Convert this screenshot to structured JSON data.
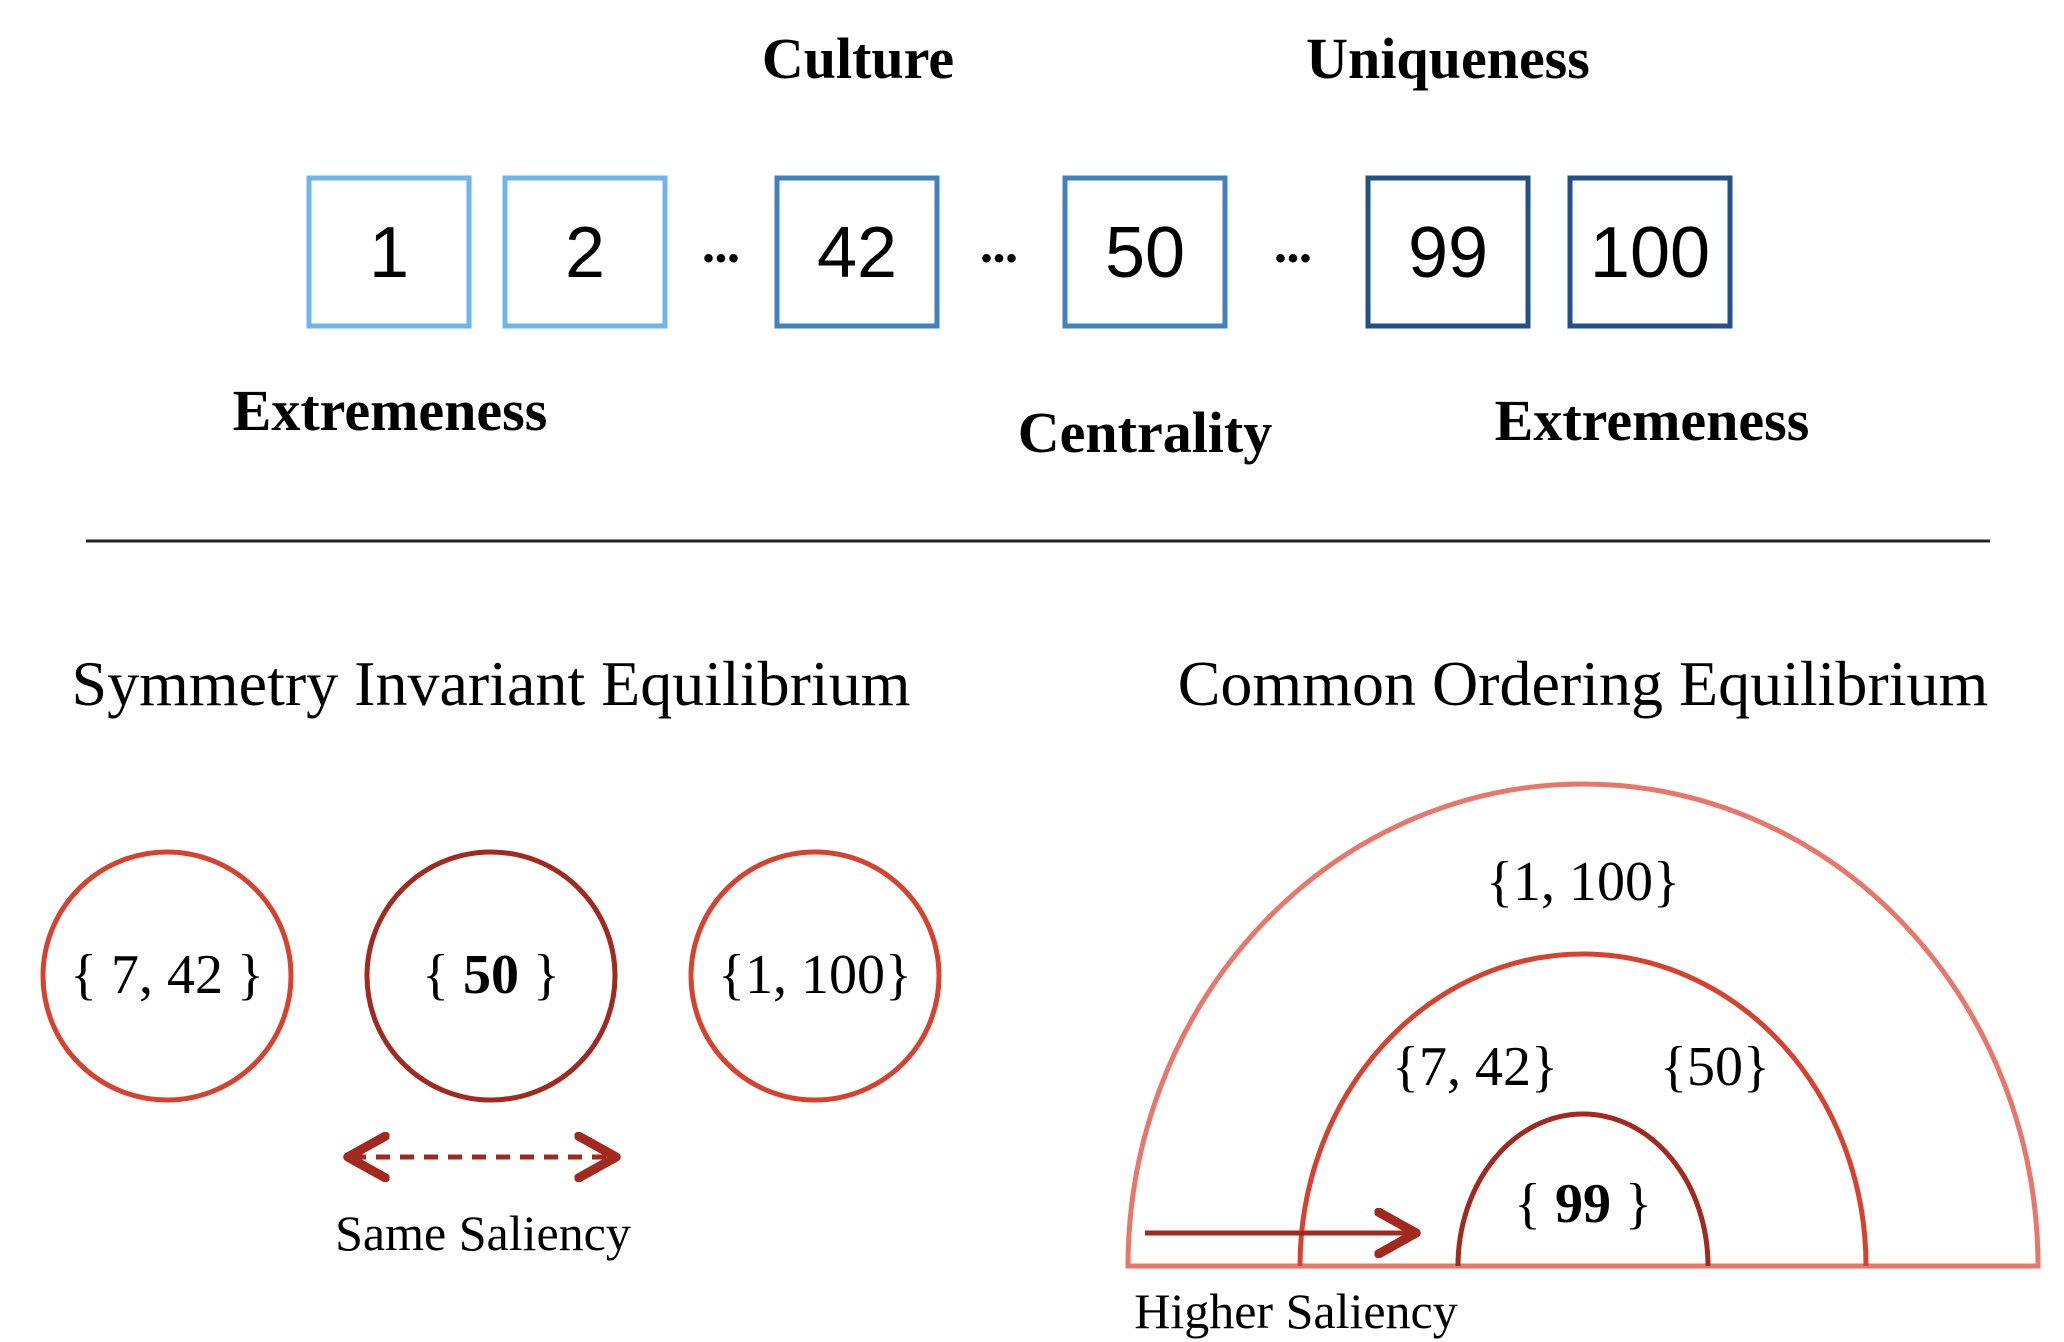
{
  "top": {
    "labels_above": [
      "Culture",
      "Uniqueness"
    ],
    "labels_below": [
      "Extremeness",
      "Centrality",
      "Extremeness"
    ],
    "boxes": [
      "1",
      "2",
      "42",
      "50",
      "99",
      "100"
    ],
    "ellipsis": "•••"
  },
  "symmetry": {
    "title": "Symmetry Invariant Equilibrium",
    "circles": [
      {
        "prefix": "{ ",
        "value": "7, 42",
        "suffix": " }",
        "bold": false
      },
      {
        "prefix": "{ ",
        "value": "50",
        "suffix": " }",
        "bold": true
      },
      {
        "prefix": "{",
        "value": "1, 100",
        "suffix": "}",
        "bold": false
      }
    ],
    "arrow_label": "Same Saliency"
  },
  "common": {
    "title": "Common Ordering Equilibrium",
    "outer_label": "{1, 100}",
    "middle_labels": [
      "{7, 42}",
      "{50}"
    ],
    "inner": {
      "prefix": "{ ",
      "value": "99",
      "suffix": " }"
    },
    "arrow_label": "Higher Saliency"
  },
  "colors": {
    "box_light": "#6db6ec",
    "box_mid": "#3f82c2",
    "box_dark": "#24508a",
    "red_light": "#e8776a",
    "red_mid": "#d9412f",
    "red_dark": "#a3281d",
    "divider": "#222222"
  }
}
